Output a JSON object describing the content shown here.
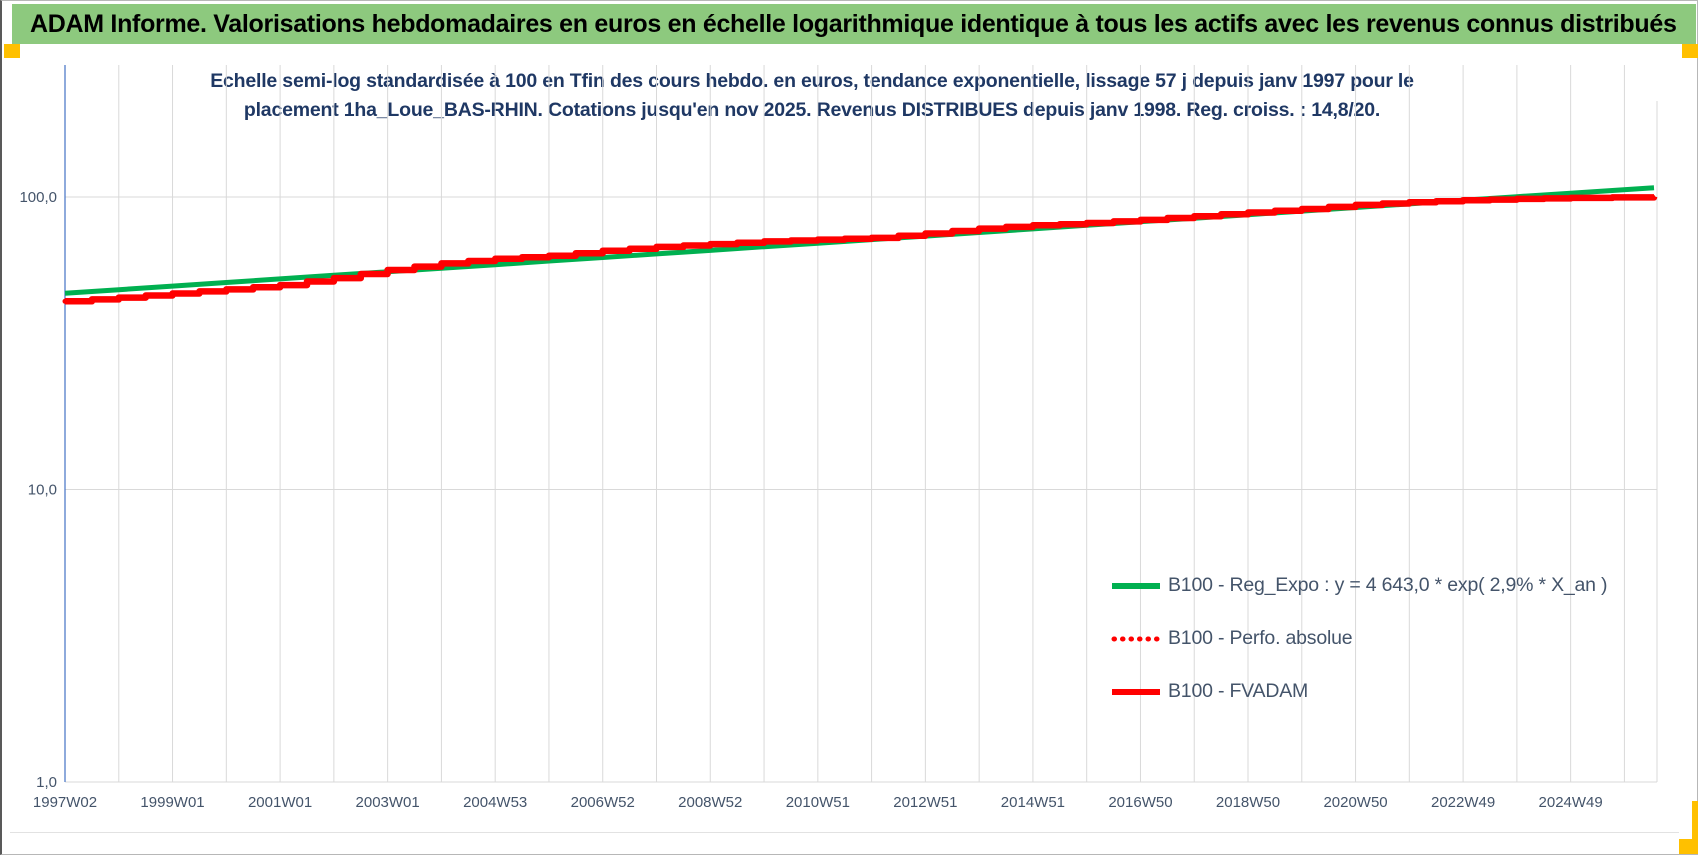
{
  "header": {
    "title": "ADAM Informe. Valorisations hebdomadaires en euros en échelle logarithmique identique à tous les actifs avec les revenus connus distribués"
  },
  "chart": {
    "title_line1": "Echelle semi-log standardisée à 100 en Tfin des cours hebdo. en euros, tendance exponentielle, lissage 57 j depuis janv 1997 pour le",
    "title_line2": "placement 1ha_Loue_BAS-RHIN. Cotations jusqu'en nov 2025. Revenus DISTRIBUES depuis janv 1998. Reg. croiss. : 14,8/20."
  },
  "chart_data": {
    "type": "line",
    "y_scale": "log10",
    "ylim": [
      1,
      215
    ],
    "grid": "yearly vertical lines + decade horizontal lines",
    "legend_position": "inside lower right",
    "y_ticks": [
      {
        "label": "100,0",
        "value": 100
      },
      {
        "label": "10,0",
        "value": 10
      },
      {
        "label": "1,0",
        "value": 1
      }
    ],
    "x_ticks": [
      "1997W02",
      "1999W01",
      "2001W01",
      "2003W01",
      "2004W53",
      "2006W52",
      "2008W52",
      "2010W51",
      "2012W51",
      "2014W51",
      "2016W50",
      "2018W50",
      "2020W50",
      "2022W49",
      "2024W49"
    ],
    "years": [
      1997,
      1998,
      1999,
      2000,
      2001,
      2002,
      2003,
      2004,
      2005,
      2006,
      2007,
      2008,
      2009,
      2010,
      2011,
      2012,
      2013,
      2014,
      2015,
      2016,
      2017,
      2018,
      2019,
      2020,
      2021,
      2022,
      2023,
      2024,
      2025,
      2025.9
    ],
    "series": [
      {
        "name": "B100 - Reg_Expo : y = 4 643,0 * exp( 2,9% *  X_an )",
        "color": "#00B050",
        "style": "solid",
        "render": "smooth",
        "width": 5,
        "values": [
          46.9,
          48.2,
          49.6,
          51.0,
          52.5,
          54.0,
          55.5,
          57.1,
          58.7,
          60.4,
          62.1,
          63.9,
          65.7,
          67.6,
          69.5,
          71.5,
          73.5,
          75.6,
          77.8,
          80.0,
          82.3,
          84.6,
          87.0,
          89.5,
          92.1,
          94.7,
          97.4,
          100.2,
          103.0,
          107.5
        ]
      },
      {
        "name": "B100 - Perfo. absolue",
        "color": "#FF0000",
        "style": "dotted",
        "render": "steps",
        "width": 5,
        "note": "coincides with B100 - FVADAM (hidden beneath solid red line)",
        "values": [
          44.0,
          45.3,
          46.8,
          48.3,
          50.0,
          52.8,
          56.3,
          59.3,
          61.5,
          63.0,
          65.5,
          67.5,
          69.0,
          70.5,
          71.5,
          72.5,
          75.0,
          78.0,
          80.0,
          81.5,
          83.5,
          86.0,
          88.5,
          91.0,
          94.0,
          96.0,
          97.5,
          98.5,
          99.3,
          100.0
        ]
      },
      {
        "name": "B100 - FVADAM",
        "color": "#FF0000",
        "style": "solid",
        "render": "steps",
        "width": 6.5,
        "values": [
          44.0,
          45.3,
          46.8,
          48.3,
          50.0,
          52.8,
          56.3,
          59.3,
          61.5,
          63.0,
          65.5,
          67.5,
          69.0,
          70.5,
          71.5,
          72.5,
          75.0,
          78.0,
          80.0,
          81.5,
          83.5,
          86.0,
          88.5,
          91.0,
          94.0,
          96.0,
          97.5,
          98.5,
          99.3,
          100.0
        ]
      }
    ]
  },
  "accents": {
    "header_green": "#8dc97e",
    "marker_orange": "#ffc000",
    "title_navy": "#1f3864",
    "axis_blue": "#4472c4",
    "gridline_gray": "#d9d9d9",
    "tick_text": "#44546a"
  }
}
